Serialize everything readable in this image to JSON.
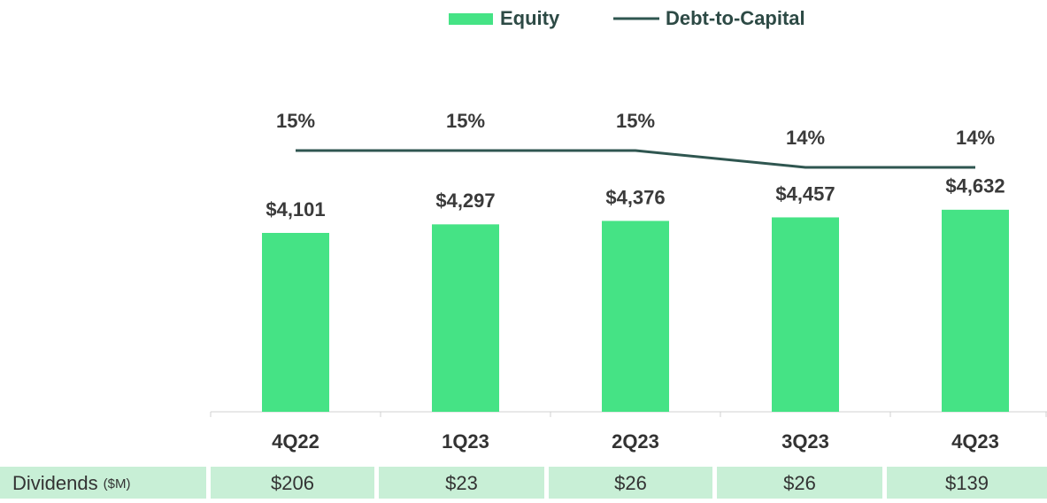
{
  "chart_data": {
    "type": "bar_line",
    "categories": [
      "4Q22",
      "1Q23",
      "2Q23",
      "3Q23",
      "4Q23"
    ],
    "series": [
      {
        "name": "Equity",
        "type": "bar",
        "color": "#45e385",
        "values": [
          4101,
          4297,
          4376,
          4457,
          4632
        ],
        "value_labels": [
          "$4,101",
          "$4,297",
          "$4,376",
          "$4,457",
          "$4,632"
        ]
      },
      {
        "name": "Debt-to-Capital",
        "type": "line",
        "axis": "y2",
        "color": "#2f5650",
        "values": [
          15,
          15,
          15,
          14,
          14
        ],
        "value_labels": [
          "15%",
          "15%",
          "15%",
          "14%",
          "14%"
        ]
      }
    ],
    "legend": "top"
  },
  "dividends": {
    "label": "Dividends",
    "unit": "($M)",
    "cells": [
      "$206",
      "$23",
      "$26",
      "$26",
      "$139"
    ]
  }
}
